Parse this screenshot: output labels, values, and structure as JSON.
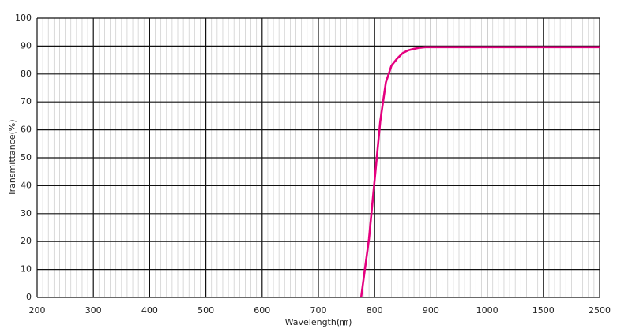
{
  "chart_data": {
    "type": "line",
    "x_label": "Wavelength(㎚)",
    "y_label": "Transmittance(%)",
    "x": [
      776,
      790,
      800,
      810,
      820,
      830,
      840,
      850,
      860,
      870,
      880,
      890,
      900,
      1000,
      1500,
      2500
    ],
    "series": [
      {
        "name": "Transmittance",
        "color": "#e4007f",
        "values": [
          0,
          21,
          42,
          63,
          77,
          83,
          85.5,
          87.5,
          88.5,
          89,
          89.4,
          89.6,
          89.6,
          89.6,
          89.6,
          89.6
        ]
      }
    ],
    "xlim": [
      200,
      2500
    ],
    "xticks": [
      200,
      300,
      400,
      500,
      600,
      700,
      800,
      900,
      1000,
      1500,
      2500
    ],
    "ylim": [
      0,
      100
    ],
    "yticks": [
      0,
      10,
      20,
      30,
      40,
      50,
      60,
      70,
      80,
      90,
      100
    ],
    "grid": true
  }
}
